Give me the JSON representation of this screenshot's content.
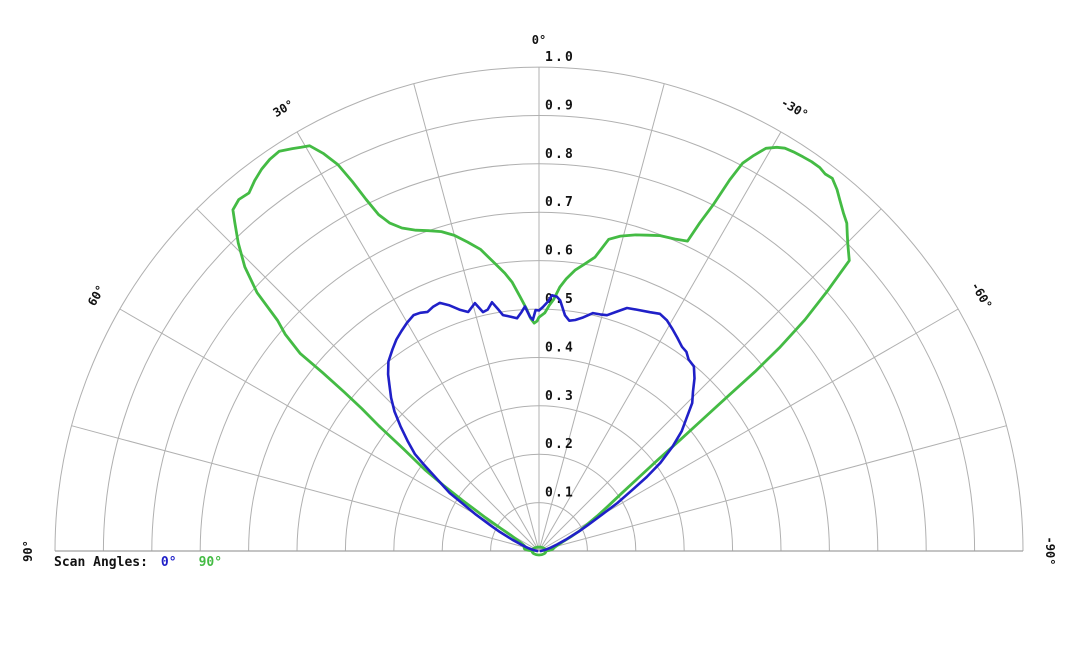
{
  "background": "#ffffff",
  "legend": {
    "label": "Scan Angles:",
    "items": [
      {
        "label": "0°",
        "color": "#2020c8"
      },
      {
        "label": "90°",
        "color": "#44bb44"
      }
    ]
  },
  "chart_data": {
    "type": "line",
    "subtype": "half-polar-radiation-pattern",
    "grid": "on",
    "r_min": 0.0,
    "r_max": 1.0,
    "r_tick_step": 0.1,
    "r_tick_labels": [
      "0.1",
      "0.2",
      "0.3",
      "0.4",
      "0.5",
      "0.6",
      "0.7",
      "0.8",
      "0.9",
      "1.0"
    ],
    "spoke_step_deg": 15,
    "angle_labels": [
      {
        "deg": 0,
        "label": "0°"
      },
      {
        "deg": 30,
        "label": "30°"
      },
      {
        "deg": 60,
        "label": "60°"
      },
      {
        "deg": 90,
        "label": "90°"
      },
      {
        "deg": -30,
        "label": "-30°"
      },
      {
        "deg": -60,
        "label": "-60°"
      },
      {
        "deg": -90,
        "label": "-90°"
      }
    ],
    "grid_color": "#b0b0b0",
    "label_color": "#111111",
    "series": [
      {
        "name": "Scan 90°",
        "color": "#44bb44",
        "width": 2.8,
        "origin_loop": true,
        "points": [
          [
            90,
            0.012
          ],
          [
            86,
            0.022
          ],
          [
            82,
            0.03
          ],
          [
            76,
            0.032
          ],
          [
            70,
            0.032
          ],
          [
            66,
            0.04
          ],
          [
            63,
            0.05
          ],
          [
            61,
            0.065
          ],
          [
            59.5,
            0.09
          ],
          [
            58,
            0.13
          ],
          [
            56.5,
            0.19
          ],
          [
            55.5,
            0.24
          ],
          [
            54.5,
            0.29
          ],
          [
            53,
            0.35
          ],
          [
            52,
            0.42
          ],
          [
            51.2,
            0.47
          ],
          [
            50.8,
            0.52
          ],
          [
            50.5,
            0.58
          ],
          [
            50.4,
            0.64
          ],
          [
            49.5,
            0.69
          ],
          [
            48.6,
            0.72
          ],
          [
            47.5,
            0.79
          ],
          [
            46,
            0.845
          ],
          [
            44.3,
            0.89
          ],
          [
            42.8,
            0.925
          ],
          [
            41.9,
            0.947
          ],
          [
            40.5,
            0.955
          ],
          [
            39,
            0.952
          ],
          [
            37.5,
            0.965
          ],
          [
            36,
            0.975
          ],
          [
            34.5,
            0.982
          ],
          [
            33,
            0.985
          ],
          [
            31.5,
            0.975
          ],
          [
            30.5,
            0.968
          ],
          [
            29.5,
            0.962
          ],
          [
            28.5,
            0.935
          ],
          [
            27.5,
            0.9
          ],
          [
            26.8,
            0.855
          ],
          [
            26.2,
            0.81
          ],
          [
            25.5,
            0.77
          ],
          [
            24.5,
            0.745
          ],
          [
            23,
            0.725
          ],
          [
            21,
            0.71
          ],
          [
            19,
            0.7
          ],
          [
            17,
            0.69
          ],
          [
            15,
            0.675
          ],
          [
            13,
            0.655
          ],
          [
            11,
            0.635
          ],
          [
            9,
            0.605
          ],
          [
            7,
            0.578
          ],
          [
            5.7,
            0.558
          ],
          [
            4.3,
            0.528
          ],
          [
            3,
            0.502
          ],
          [
            2,
            0.48
          ],
          [
            1.2,
            0.471
          ],
          [
            0.5,
            0.475
          ],
          [
            0,
            0.483
          ],
          [
            -1.4,
            0.492
          ],
          [
            -2.4,
            0.508
          ],
          [
            -3.3,
            0.52
          ],
          [
            -4.5,
            0.547
          ],
          [
            -5.7,
            0.565
          ],
          [
            -7.3,
            0.585
          ],
          [
            -9,
            0.6
          ],
          [
            -10.8,
            0.618
          ],
          [
            -12.6,
            0.66
          ],
          [
            -14.5,
            0.672
          ],
          [
            -17,
            0.683
          ],
          [
            -19,
            0.69
          ],
          [
            -21,
            0.698
          ],
          [
            -23.5,
            0.703
          ],
          [
            -25.6,
            0.71
          ],
          [
            -26.1,
            0.755
          ],
          [
            -26.7,
            0.8
          ],
          [
            -27.2,
            0.862
          ],
          [
            -27.7,
            0.905
          ],
          [
            -28.5,
            0.93
          ],
          [
            -29.4,
            0.955
          ],
          [
            -30.5,
            0.968
          ],
          [
            -31.4,
            0.975
          ],
          [
            -32.5,
            0.978
          ],
          [
            -33.8,
            0.98
          ],
          [
            -35,
            0.982
          ],
          [
            -36.2,
            0.982
          ],
          [
            -37.2,
            0.978
          ],
          [
            -38.2,
            0.98
          ],
          [
            -39.5,
            0.968
          ],
          [
            -40.6,
            0.955
          ],
          [
            -42,
            0.94
          ],
          [
            -43.2,
            0.929
          ],
          [
            -44.3,
            0.912
          ],
          [
            -45.3,
            0.898
          ],
          [
            -46.9,
            0.878
          ],
          [
            -48,
            0.8
          ],
          [
            -49,
            0.728
          ],
          [
            -49.8,
            0.65
          ],
          [
            -50.3,
            0.58
          ],
          [
            -50.7,
            0.5
          ],
          [
            -51.2,
            0.43
          ],
          [
            -51.8,
            0.37
          ],
          [
            -52.5,
            0.31
          ],
          [
            -53.5,
            0.26
          ],
          [
            -55,
            0.21
          ],
          [
            -57,
            0.17
          ],
          [
            -59,
            0.14
          ],
          [
            -61,
            0.115
          ],
          [
            -63.5,
            0.095
          ],
          [
            -66,
            0.072
          ],
          [
            -69,
            0.052
          ],
          [
            -73,
            0.04
          ],
          [
            -78,
            0.032
          ],
          [
            -83,
            0.028
          ],
          [
            -87,
            0.02
          ],
          [
            -90,
            0.012
          ]
        ]
      },
      {
        "name": "Scan 0°",
        "color": "#2020c8",
        "width": 2.6,
        "origin_loop": false,
        "points": [
          [
            90,
            0.004
          ],
          [
            83,
            0.008
          ],
          [
            78,
            0.015
          ],
          [
            74,
            0.025
          ],
          [
            70,
            0.04
          ],
          [
            67,
            0.06
          ],
          [
            64,
            0.09
          ],
          [
            62,
            0.115
          ],
          [
            60,
            0.15
          ],
          [
            58,
            0.19
          ],
          [
            57,
            0.22
          ],
          [
            55.5,
            0.245
          ],
          [
            54,
            0.275
          ],
          [
            53,
            0.3
          ],
          [
            52,
            0.325
          ],
          [
            50,
            0.355
          ],
          [
            48,
            0.385
          ],
          [
            46,
            0.415
          ],
          [
            44,
            0.44
          ],
          [
            42,
            0.462
          ],
          [
            40.5,
            0.48
          ],
          [
            38.5,
            0.5
          ],
          [
            36,
            0.515
          ],
          [
            34,
            0.527
          ],
          [
            32,
            0.536
          ],
          [
            30,
            0.545
          ],
          [
            28,
            0.552
          ],
          [
            26.5,
            0.55
          ],
          [
            25,
            0.545
          ],
          [
            23.5,
            0.55
          ],
          [
            21.8,
            0.552
          ],
          [
            20,
            0.54
          ],
          [
            18.1,
            0.524
          ],
          [
            16.5,
            0.515
          ],
          [
            14.5,
            0.529
          ],
          [
            13.2,
            0.507
          ],
          [
            12,
            0.51
          ],
          [
            10.7,
            0.523
          ],
          [
            9.5,
            0.505
          ],
          [
            8.7,
            0.493
          ],
          [
            7,
            0.488
          ],
          [
            5.4,
            0.483
          ],
          [
            4.2,
            0.495
          ],
          [
            3.3,
            0.506
          ],
          [
            2.2,
            0.484
          ],
          [
            1.5,
            0.478
          ],
          [
            0.8,
            0.498
          ],
          [
            0,
            0.497
          ],
          [
            -0.9,
            0.504
          ],
          [
            -2,
            0.515
          ],
          [
            -2.9,
            0.529
          ],
          [
            -4,
            0.527
          ],
          [
            -4.8,
            0.52
          ],
          [
            -6.3,
            0.49
          ],
          [
            -7.5,
            0.48
          ],
          [
            -8.9,
            0.483
          ],
          [
            -10.5,
            0.49
          ],
          [
            -12.8,
            0.504
          ],
          [
            -14.5,
            0.505
          ],
          [
            -16.1,
            0.507
          ],
          [
            -18,
            0.52
          ],
          [
            -19.9,
            0.534
          ],
          [
            -22,
            0.538
          ],
          [
            -24.9,
            0.544
          ],
          [
            -27,
            0.55
          ],
          [
            -29,
            0.545
          ],
          [
            -31,
            0.535
          ],
          [
            -33,
            0.525
          ],
          [
            -35,
            0.515
          ],
          [
            -36.5,
            0.512
          ],
          [
            -38,
            0.502
          ],
          [
            -40,
            0.498
          ],
          [
            -42,
            0.48
          ],
          [
            -44,
            0.458
          ],
          [
            -46,
            0.44
          ],
          [
            -48,
            0.41
          ],
          [
            -50,
            0.385
          ],
          [
            -52,
            0.35
          ],
          [
            -54,
            0.31
          ],
          [
            -55.5,
            0.27
          ],
          [
            -57,
            0.225
          ],
          [
            -58.5,
            0.19
          ],
          [
            -60,
            0.15
          ],
          [
            -62,
            0.115
          ],
          [
            -64,
            0.09
          ],
          [
            -67,
            0.06
          ],
          [
            -70,
            0.04
          ],
          [
            -74,
            0.025
          ],
          [
            -78,
            0.015
          ],
          [
            -83,
            0.008
          ],
          [
            -90,
            0.004
          ]
        ]
      }
    ]
  }
}
